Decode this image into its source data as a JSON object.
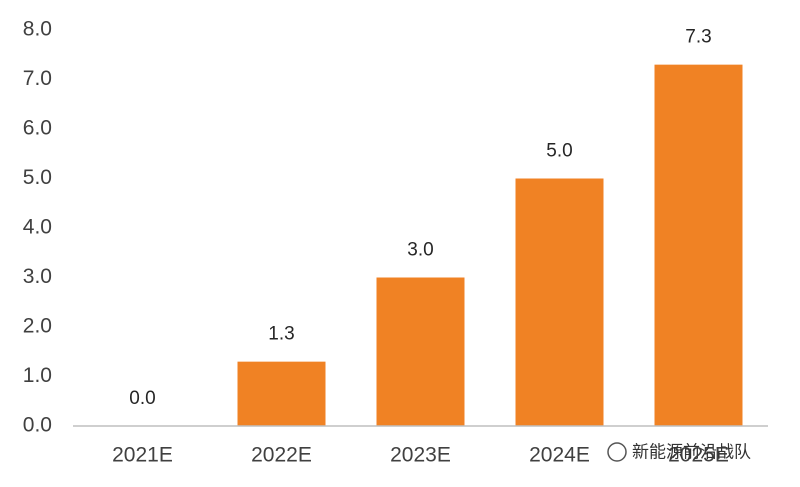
{
  "chart_data": {
    "type": "bar",
    "categories": [
      "2021E",
      "2022E",
      "2023E",
      "2024E",
      "2025E"
    ],
    "values": [
      0,
      1.3,
      3,
      5,
      7.3
    ],
    "value_labels": [
      "0.0",
      "1.3",
      "3.0",
      "5.0",
      "7.3"
    ],
    "color": "#f08224",
    "ylim": [
      0,
      8
    ],
    "yticks": [
      {
        "value": 0,
        "label": "0.0"
      },
      {
        "value": 1,
        "label": "1.0"
      },
      {
        "value": 2,
        "label": "2.0"
      },
      {
        "value": 3,
        "label": "3.0"
      },
      {
        "value": 4,
        "label": "4.0"
      },
      {
        "value": 5,
        "label": "5.0"
      },
      {
        "value": 6,
        "label": "6.0"
      },
      {
        "value": 7,
        "label": "7.0"
      },
      {
        "value": 8,
        "label": "8.0"
      }
    ],
    "grid": false,
    "watermark": "新能源前沿战队"
  }
}
